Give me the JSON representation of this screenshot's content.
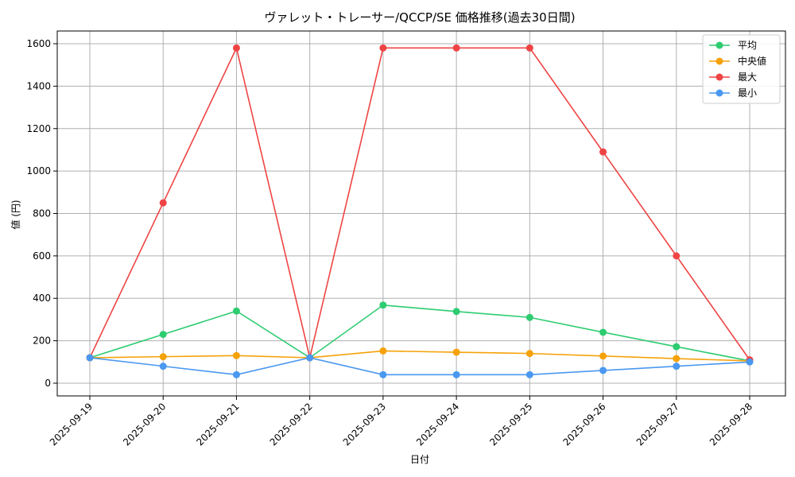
{
  "chart_data": {
    "type": "line",
    "title": "ヴァレット・トレーサー/QCCP/SE 価格推移(過去30日間)",
    "xlabel": "日付",
    "ylabel": "値 (円)",
    "categories": [
      "2025-09-19",
      "2025-09-20",
      "2025-09-21",
      "2025-09-22",
      "2025-09-23",
      "2025-09-24",
      "2025-09-25",
      "2025-09-26",
      "2025-09-27",
      "2025-09-28"
    ],
    "ylim": [
      -60,
      1660
    ],
    "yticks": [
      0,
      200,
      400,
      600,
      800,
      1000,
      1200,
      1400,
      1600
    ],
    "grid": true,
    "legend_position": "top-right",
    "series": [
      {
        "name": "平均",
        "color": "#2ecc71",
        "values": [
          120,
          230,
          340,
          120,
          368,
          338,
          310,
          240,
          172,
          105
        ]
      },
      {
        "name": "中央値",
        "color": "#f5a20a",
        "values": [
          120,
          125,
          130,
          120,
          152,
          146,
          140,
          128,
          116,
          105
        ]
      },
      {
        "name": "最大",
        "color": "#ef4444",
        "values": [
          120,
          850,
          1580,
          120,
          1580,
          1580,
          1580,
          1090,
          600,
          110
        ]
      },
      {
        "name": "最小",
        "color": "#4a98f0",
        "values": [
          120,
          80,
          40,
          120,
          40,
          40,
          40,
          60,
          80,
          100
        ]
      }
    ]
  }
}
